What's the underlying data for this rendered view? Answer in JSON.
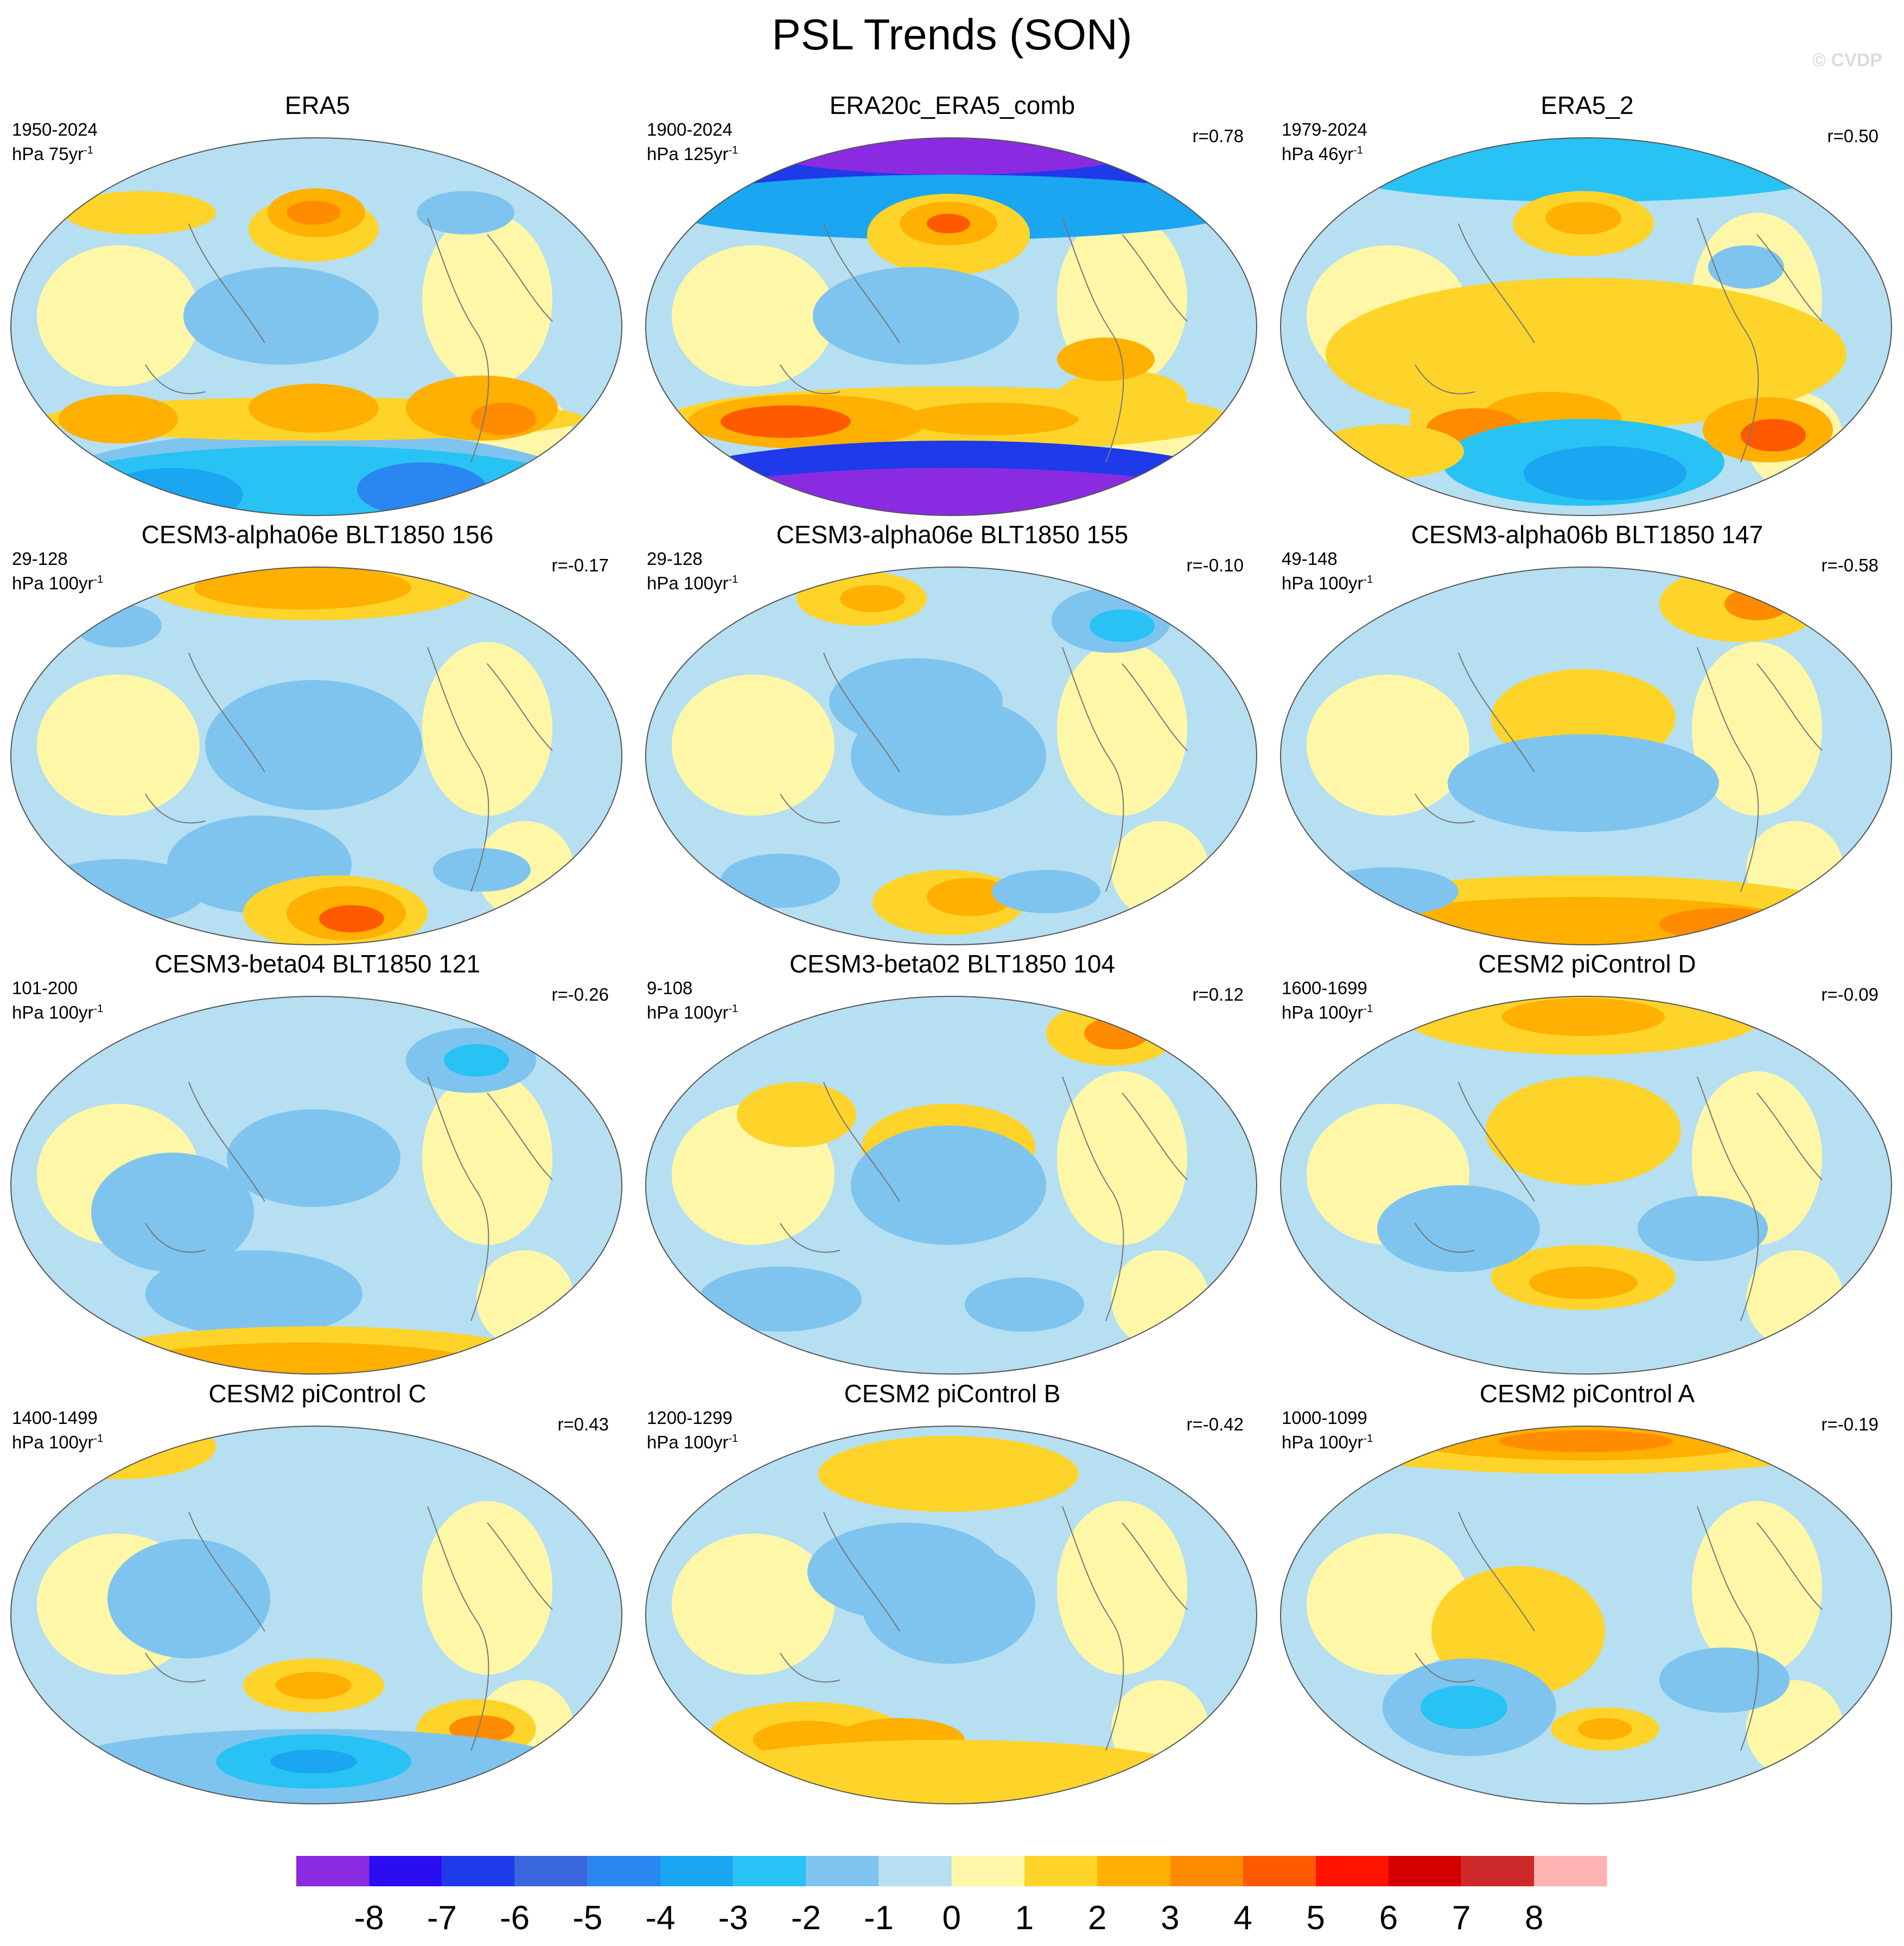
{
  "title": "PSL Trends (SON)",
  "watermark": "© CVDP",
  "colorbar": {
    "colors": [
      "#8a2be2",
      "#2a0df0",
      "#1f3ae8",
      "#3a66de",
      "#2a86f0",
      "#1aa6f0",
      "#28c2f4",
      "#7ec4ee",
      "#b6dff2",
      "#fff7a8",
      "#ffd42a",
      "#ffb000",
      "#ff8c00",
      "#ff5a00",
      "#ff1200",
      "#d40000",
      "#cc2a2a",
      "#ffb3b3"
    ],
    "labels": [
      "-8",
      "-7",
      "-6",
      "-5",
      "-4",
      "-3",
      "-2",
      "-1",
      "0",
      "1",
      "2",
      "3",
      "4",
      "5",
      "6",
      "7",
      "8"
    ]
  },
  "chart_data": {
    "type": "map-panels",
    "units_note": "hPa per trend period",
    "levels": [
      -8,
      -7,
      -6,
      -5,
      -4,
      -3,
      -2,
      -1,
      0,
      1,
      2,
      3,
      4,
      5,
      6,
      7,
      8
    ],
    "panels": [
      {
        "title": "ERA5",
        "period": "1950-2024",
        "units_main": "hPa 75yr",
        "units_sup": "-1",
        "corr": "",
        "trend_hPa": 75
      },
      {
        "title": "ERA20c_ERA5_comb",
        "period": "1900-2024",
        "units_main": "hPa 125yr",
        "units_sup": "-1",
        "corr": "r=0.78",
        "trend_hPa": 125
      },
      {
        "title": "ERA5_2",
        "period": "1979-2024",
        "units_main": "hPa 46yr",
        "units_sup": "-1",
        "corr": "r=0.50",
        "trend_hPa": 46
      },
      {
        "title": "CESM3-alpha06e BLT1850 156",
        "period": "29-128",
        "units_main": "hPa 100yr",
        "units_sup": "-1",
        "corr": "r=-0.17",
        "trend_hPa": 100
      },
      {
        "title": "CESM3-alpha06e BLT1850 155",
        "period": "29-128",
        "units_main": "hPa 100yr",
        "units_sup": "-1",
        "corr": "r=-0.10",
        "trend_hPa": 100
      },
      {
        "title": "CESM3-alpha06b BLT1850 147",
        "period": "49-148",
        "units_main": "hPa 100yr",
        "units_sup": "-1",
        "corr": "r=-0.58",
        "trend_hPa": 100
      },
      {
        "title": "CESM3-beta04 BLT1850 121",
        "period": "101-200",
        "units_main": "hPa 100yr",
        "units_sup": "-1",
        "corr": "r=-0.26",
        "trend_hPa": 100
      },
      {
        "title": "CESM3-beta02 BLT1850 104",
        "period": "9-108",
        "units_main": "hPa 100yr",
        "units_sup": "-1",
        "corr": "r=0.12",
        "trend_hPa": 100
      },
      {
        "title": "CESM2 piControl D",
        "period": "1600-1699",
        "units_main": "hPa 100yr",
        "units_sup": "-1",
        "corr": "r=-0.09",
        "trend_hPa": 100
      },
      {
        "title": "CESM2 piControl C",
        "period": "1400-1499",
        "units_main": "hPa 100yr",
        "units_sup": "-1",
        "corr": "r=0.43",
        "trend_hPa": 100
      },
      {
        "title": "CESM2 piControl B",
        "period": "1200-1299",
        "units_main": "hPa 100yr",
        "units_sup": "-1",
        "corr": "r=-0.42",
        "trend_hPa": 100
      },
      {
        "title": "CESM2 piControl A",
        "period": "1000-1099",
        "units_main": "hPa 100yr",
        "units_sup": "-1",
        "corr": "r=-0.19",
        "trend_hPa": 100
      }
    ]
  }
}
